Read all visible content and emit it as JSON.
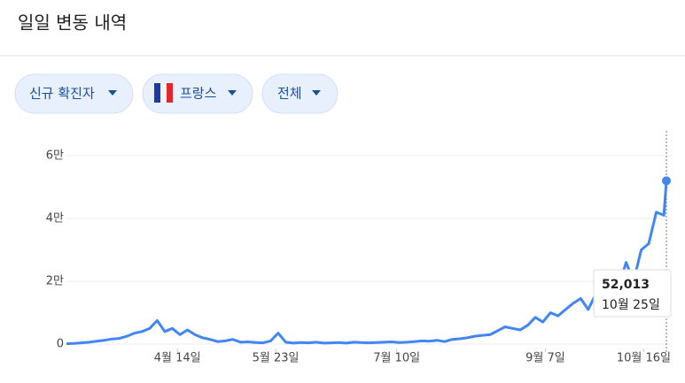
{
  "header": {
    "title": "일일 변동 내역"
  },
  "filters": [
    {
      "label": "신규 확진자"
    },
    {
      "label": "프랑스"
    },
    {
      "label": "전체"
    }
  ],
  "chart_data": {
    "type": "line",
    "color": "#4285f4",
    "grid": true,
    "x": [
      "03-01",
      "03-04",
      "03-07",
      "03-10",
      "03-13",
      "03-16",
      "03-19",
      "03-22",
      "03-25",
      "03-28",
      "03-31",
      "04-03",
      "04-06",
      "04-09",
      "04-12",
      "04-15",
      "04-18",
      "04-21",
      "04-24",
      "04-27",
      "04-30",
      "05-03",
      "05-06",
      "05-09",
      "05-12",
      "05-15",
      "05-18",
      "05-21",
      "05-24",
      "05-27",
      "05-30",
      "06-02",
      "06-05",
      "06-08",
      "06-11",
      "06-14",
      "06-17",
      "06-20",
      "06-23",
      "06-26",
      "06-29",
      "07-02",
      "07-05",
      "07-08",
      "07-11",
      "07-14",
      "07-17",
      "07-20",
      "07-23",
      "07-26",
      "07-29",
      "08-01",
      "08-04",
      "08-07",
      "08-10",
      "08-13",
      "08-16",
      "08-19",
      "08-22",
      "08-25",
      "08-28",
      "08-31",
      "09-03",
      "09-06",
      "09-09",
      "09-12",
      "09-15",
      "09-18",
      "09-21",
      "09-24",
      "09-27",
      "09-30",
      "10-03",
      "10-06",
      "10-09",
      "10-12",
      "10-15",
      "10-18",
      "10-21",
      "10-24",
      "10-25"
    ],
    "values": [
      100,
      200,
      400,
      600,
      900,
      1200,
      1600,
      1800,
      2500,
      3500,
      4000,
      5000,
      7500,
      4000,
      5000,
      3000,
      4500,
      3000,
      2000,
      1500,
      800,
      1000,
      1500,
      600,
      700,
      500,
      400,
      1000,
      3500,
      600,
      300,
      500,
      400,
      600,
      300,
      400,
      500,
      300,
      600,
      500,
      400,
      500,
      600,
      700,
      500,
      600,
      800,
      1000,
      900,
      1200,
      800,
      1500,
      1700,
      2000,
      2500,
      2800,
      3000,
      4200,
      5500,
      5000,
      4500,
      6000,
      8500,
      7000,
      10000,
      9000,
      11000,
      13000,
      14500,
      11000,
      16000,
      12000,
      17000,
      18000,
      26000,
      20000,
      30000,
      32000,
      42000,
      41000,
      52013
    ],
    "xlim": [
      "03-01",
      "10-25"
    ],
    "xticks": [
      {
        "value": "04-14",
        "label": "4월 14일"
      },
      {
        "value": "05-23",
        "label": "5월 23일"
      },
      {
        "value": "07-10",
        "label": "7월 10일"
      },
      {
        "value": "09-07",
        "label": "9월 7일"
      },
      {
        "value": "10-16",
        "label": "10월 16일"
      }
    ],
    "ylim": [
      0,
      60000
    ],
    "yticks": [
      0,
      {
        "value": 20000,
        "label": "2만"
      },
      {
        "value": 40000,
        "label": "4만"
      },
      {
        "value": 60000,
        "label": "6만"
      }
    ],
    "tooltip": {
      "x": "10-25",
      "value_label": "52,013",
      "date_label": "10월 25일"
    }
  }
}
